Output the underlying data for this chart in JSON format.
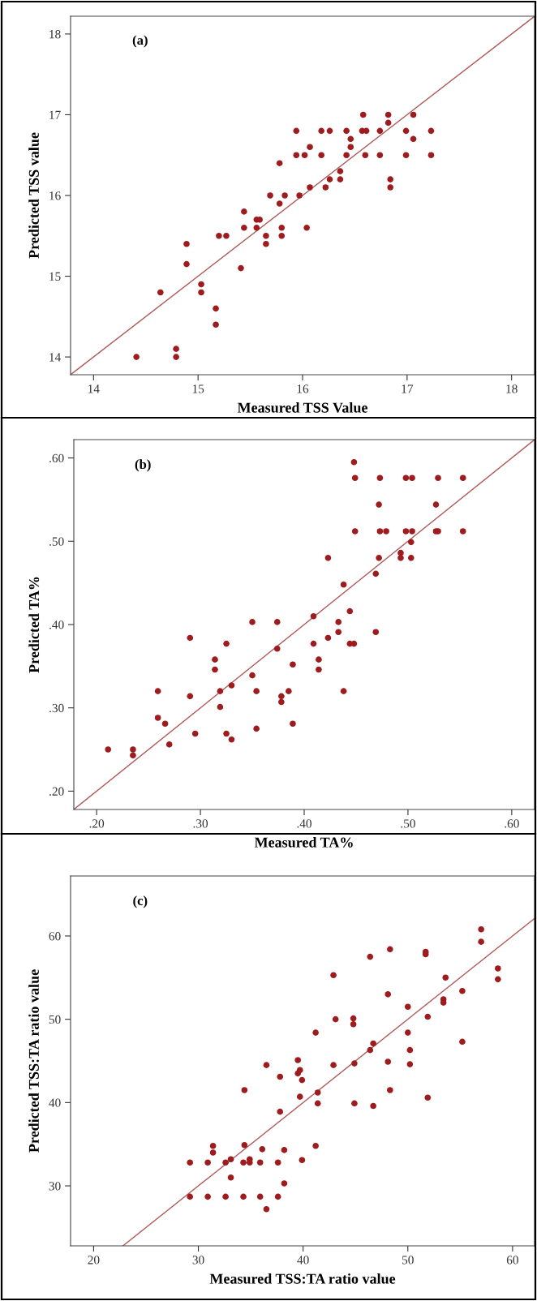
{
  "chart_data": [
    {
      "type": "scatter",
      "xlabel": "Measured TSS Value",
      "ylabel": "Predicted TSS value",
      "annotations": [
        "(a)"
      ],
      "xlim": [
        13.78,
        18.22
      ],
      "ylim": [
        13.78,
        18.22
      ],
      "xticks": [
        14,
        15,
        16,
        17,
        18
      ],
      "yticks": [
        14,
        15,
        16,
        17,
        18
      ],
      "series": [
        {
          "color": "#9e1b1e",
          "marker": "circle",
          "x": [
            14.41,
            14.64,
            14.79,
            14.79,
            14.89,
            14.89,
            15.03,
            15.03,
            15.17,
            15.17,
            15.2,
            15.27,
            15.41,
            15.44,
            15.44,
            15.56,
            15.59,
            15.56,
            15.65,
            15.65,
            15.69,
            15.78,
            15.78,
            15.8,
            15.8,
            15.83,
            15.94,
            15.94,
            15.97,
            16.02,
            16.04,
            16.07,
            16.07,
            16.18,
            16.18,
            16.22,
            16.26,
            16.26,
            16.36,
            16.36,
            16.42,
            16.42,
            16.46,
            16.46,
            16.58,
            16.57,
            16.61,
            16.6,
            16.74,
            16.74,
            16.82,
            16.82,
            16.84,
            16.84,
            16.99,
            16.99,
            17.06,
            17.06,
            17.23,
            17.23
          ],
          "values": [
            14.0,
            14.8,
            14.1,
            14.0,
            15.4,
            15.15,
            14.9,
            14.8,
            14.6,
            14.4,
            15.5,
            15.5,
            15.1,
            15.8,
            15.6,
            15.7,
            15.7,
            15.6,
            15.5,
            15.4,
            16.0,
            15.9,
            16.4,
            15.6,
            15.5,
            16.0,
            16.8,
            16.5,
            16.0,
            16.5,
            15.6,
            16.6,
            16.1,
            16.8,
            16.5,
            16.1,
            16.8,
            16.2,
            16.3,
            16.2,
            16.8,
            16.5,
            16.7,
            16.6,
            17.0,
            16.8,
            16.8,
            16.5,
            16.8,
            16.5,
            17.0,
            16.9,
            16.2,
            16.1,
            16.8,
            16.5,
            17.0,
            16.7,
            16.8,
            16.5
          ]
        },
        {
          "type": "line",
          "color": "#b05a5a",
          "marker": "none",
          "x": [
            13.78,
            18.22
          ],
          "values": [
            13.78,
            18.22
          ]
        }
      ]
    },
    {
      "type": "scatter",
      "xlabel": "Measured TA%",
      "ylabel": "Predicted TA%",
      "annotations": [
        "(b)"
      ],
      "xlim": [
        0.178,
        0.622
      ],
      "ylim": [
        0.178,
        0.622
      ],
      "xticks": [
        {
          "value": 0.2,
          "label": ".20"
        },
        {
          "value": 0.3,
          "label": ".30"
        },
        {
          "value": 0.4,
          "label": ".40"
        },
        {
          "value": 0.5,
          "label": ".50"
        },
        {
          "value": 0.6,
          "label": ".60"
        }
      ],
      "yticks": [
        {
          "value": 0.2,
          "label": ".20"
        },
        {
          "value": 0.3,
          "label": ".30"
        },
        {
          "value": 0.4,
          "label": ".40"
        },
        {
          "value": 0.5,
          "label": ".50"
        },
        {
          "value": 0.6,
          "label": ".60"
        }
      ],
      "series": [
        {
          "color": "#9e1b1e",
          "marker": "circle",
          "x": [
            0.211,
            0.235,
            0.235,
            0.259,
            0.259,
            0.266,
            0.27,
            0.29,
            0.29,
            0.295,
            0.314,
            0.314,
            0.319,
            0.319,
            0.325,
            0.325,
            0.33,
            0.33,
            0.35,
            0.35,
            0.354,
            0.354,
            0.374,
            0.374,
            0.378,
            0.378,
            0.385,
            0.389,
            0.389,
            0.409,
            0.409,
            0.414,
            0.414,
            0.423,
            0.423,
            0.433,
            0.433,
            0.438,
            0.438,
            0.444,
            0.444,
            0.448,
            0.449,
            0.449,
            0.448,
            0.469,
            0.469,
            0.472,
            0.472,
            0.473,
            0.473,
            0.479,
            0.493,
            0.493,
            0.498,
            0.498,
            0.503,
            0.503,
            0.504,
            0.504,
            0.527,
            0.527,
            0.529,
            0.529,
            0.553,
            0.553
          ],
          "values": [
            0.25,
            0.25,
            0.243,
            0.32,
            0.288,
            0.281,
            0.256,
            0.384,
            0.314,
            0.269,
            0.358,
            0.346,
            0.32,
            0.301,
            0.377,
            0.269,
            0.327,
            0.262,
            0.403,
            0.339,
            0.32,
            0.275,
            0.403,
            0.371,
            0.314,
            0.307,
            0.32,
            0.352,
            0.281,
            0.41,
            0.377,
            0.358,
            0.346,
            0.48,
            0.384,
            0.403,
            0.391,
            0.448,
            0.32,
            0.416,
            0.377,
            0.595,
            0.576,
            0.512,
            0.377,
            0.461,
            0.391,
            0.544,
            0.48,
            0.576,
            0.512,
            0.512,
            0.486,
            0.48,
            0.576,
            0.512,
            0.499,
            0.48,
            0.576,
            0.512,
            0.544,
            0.512,
            0.576,
            0.512,
            0.576,
            0.512
          ]
        },
        {
          "type": "line",
          "color": "#b05a5a",
          "marker": "none",
          "x": [
            0.178,
            0.622
          ],
          "values": [
            0.178,
            0.622
          ]
        }
      ]
    },
    {
      "type": "scatter",
      "xlabel": "Measured TSS:TA ratio value",
      "ylabel": "Predicted TSS:TA ratio value",
      "annotations": [
        "(c)"
      ],
      "xlim": [
        17.8,
        62.1
      ],
      "ylim": [
        22.8,
        67.2
      ],
      "xticks": [
        20,
        30,
        40,
        50,
        60
      ],
      "yticks": [
        30,
        40,
        50,
        60
      ],
      "series": [
        {
          "color": "#9e1b1e",
          "marker": "circle",
          "x": [
            29.2,
            29.2,
            30.9,
            30.9,
            31.4,
            31.4,
            32.6,
            32.6,
            33.1,
            33.1,
            34.3,
            34.3,
            34.4,
            34.4,
            34.9,
            34.9,
            35.9,
            35.9,
            36.1,
            36.5,
            36.5,
            37.6,
            37.6,
            37.8,
            37.8,
            38.2,
            38.2,
            39.5,
            39.5,
            39.7,
            39.7,
            39.9,
            39.9,
            41.2,
            41.2,
            41.4,
            41.4,
            42.9,
            42.9,
            43.1,
            44.8,
            44.8,
            44.9,
            44.9,
            46.4,
            46.4,
            46.7,
            46.7,
            48.1,
            48.1,
            48.3,
            48.3,
            50.0,
            50.0,
            50.2,
            50.2,
            51.7,
            51.7,
            51.9,
            51.9,
            53.4,
            53.4,
            53.6,
            55.2,
            55.2,
            57.0,
            57.0,
            58.6,
            58.6
          ],
          "values": [
            32.8,
            28.7,
            32.8,
            28.7,
            34.8,
            34.0,
            32.8,
            28.7,
            33.2,
            31.0,
            32.8,
            28.7,
            41.5,
            34.9,
            33.2,
            32.8,
            32.8,
            28.7,
            34.4,
            44.5,
            27.2,
            32.8,
            28.7,
            43.1,
            38.9,
            34.3,
            30.3,
            45.1,
            43.5,
            43.9,
            40.7,
            42.7,
            33.1,
            48.4,
            34.8,
            41.2,
            39.9,
            55.3,
            44.5,
            50.0,
            50.1,
            49.4,
            44.7,
            39.9,
            57.5,
            46.3,
            47.1,
            39.6,
            53.0,
            44.9,
            58.4,
            41.5,
            51.5,
            48.4,
            46.3,
            44.6,
            58.1,
            57.8,
            50.3,
            40.6,
            52.4,
            52.0,
            55.0,
            53.4,
            47.3,
            60.8,
            59.3,
            56.1,
            54.8
          ]
        },
        {
          "type": "line",
          "color": "#b05a5a",
          "marker": "none",
          "x": [
            22.8,
            62.1
          ],
          "values": [
            22.8,
            62.1
          ]
        }
      ]
    }
  ]
}
